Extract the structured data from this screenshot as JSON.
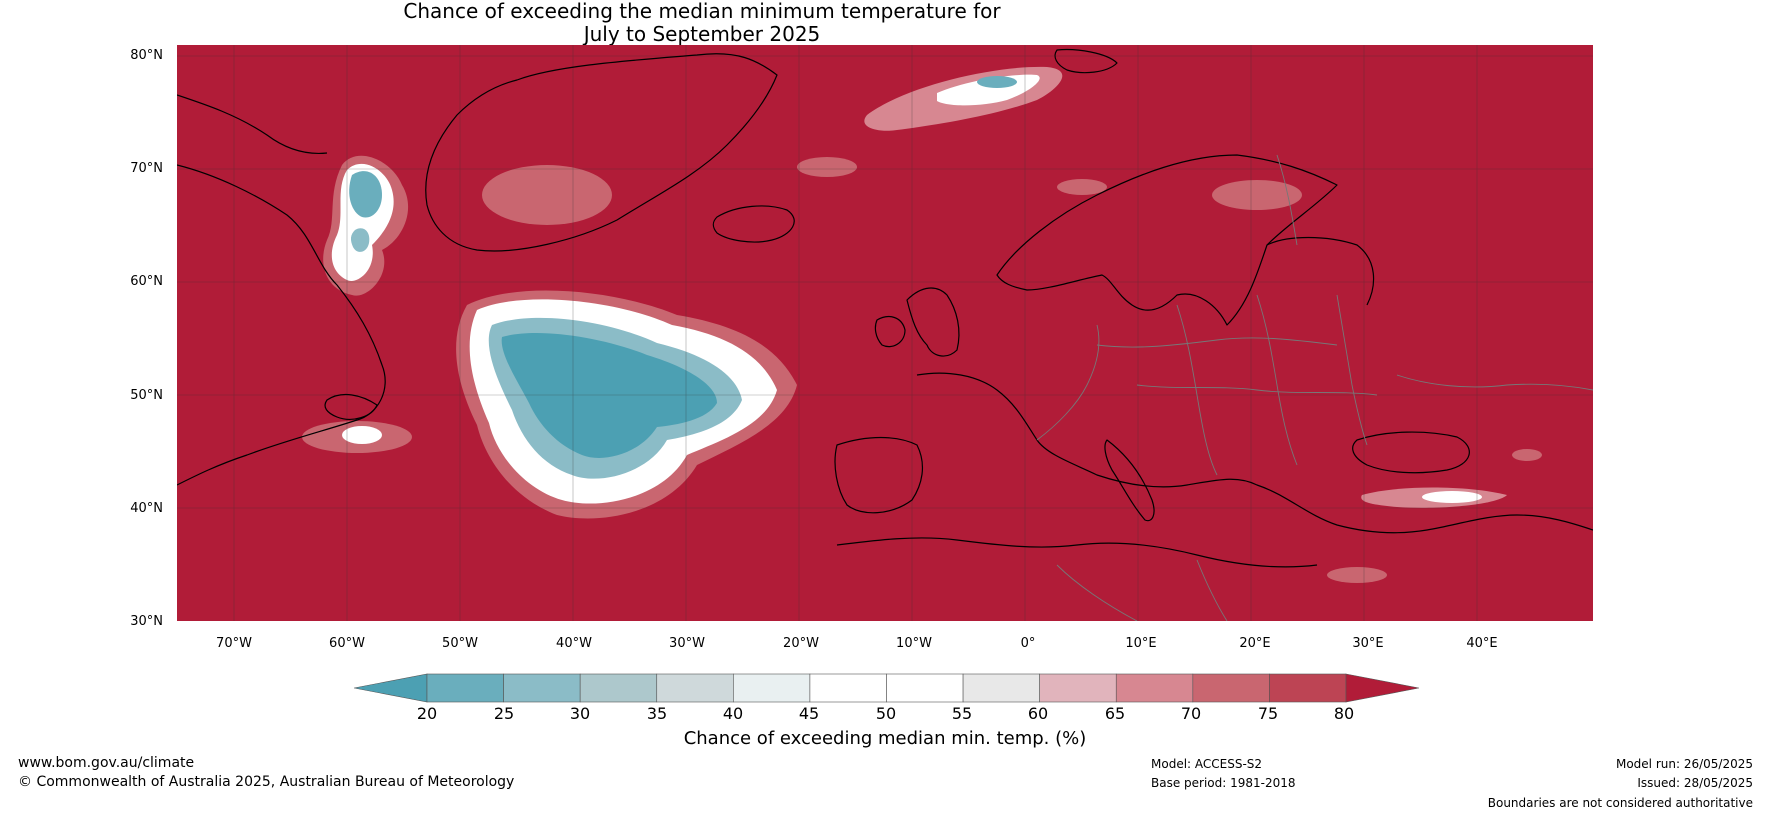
{
  "title": {
    "line1": "Chance of exceeding the median minimum temperature for",
    "line2": "July to September 2025"
  },
  "map": {
    "background_color": "#b11c38",
    "lat_labels": [
      "80°N",
      "70°N",
      "60°N",
      "50°N",
      "40°N",
      "30°N"
    ],
    "lon_labels": [
      "70°W",
      "60°W",
      "50°W",
      "40°W",
      "30°W",
      "20°W",
      "10°W",
      "0°",
      "10°E",
      "20°E",
      "30°E",
      "40°E"
    ]
  },
  "colorbar": {
    "ticks": [
      "20",
      "25",
      "30",
      "35",
      "40",
      "45",
      "50",
      "55",
      "60",
      "65",
      "70",
      "75",
      "80"
    ],
    "colors": [
      "#4ca0b3",
      "#6aaebd",
      "#8bbcc7",
      "#adc8cc",
      "#cfd9db",
      "#e9f0f1",
      "#ffffff",
      "#ffffff",
      "#e8e8e8",
      "#e1b4bc",
      "#d78791",
      "#c96670",
      "#bd4454",
      "#b11c38"
    ],
    "label": "Chance of exceeding median min. temp. (%)"
  },
  "footer": {
    "website": "www.bom.gov.au/climate",
    "copyright": "© Commonwealth of Australia 2025, Australian Bureau of Meteorology",
    "model": "Model: ACCESS-S2",
    "base_period": "Base period: 1981-2018",
    "model_run": "Model run: 26/05/2025",
    "issued": "Issued: 28/05/2025",
    "disclaimer": "Boundaries are not considered authoritative"
  }
}
